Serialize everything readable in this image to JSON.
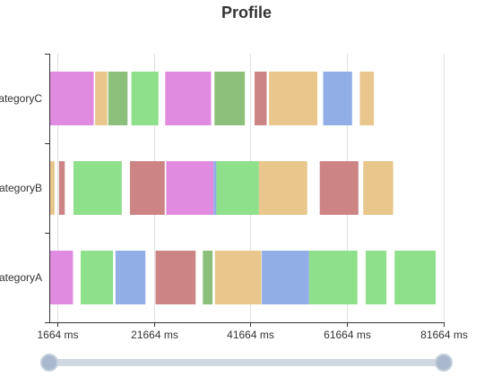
{
  "chart_data": {
    "type": "custom-profile",
    "title": "Profile",
    "x_unit": "ms",
    "x_min": 0,
    "x_max": 81664,
    "x_ticks": [
      1664,
      21664,
      41664,
      61664,
      81664
    ],
    "categories": [
      "categoryA",
      "categoryB",
      "categoryC"
    ],
    "colors": {
      "magenta": "#e08be0",
      "tan": "#e8c68c",
      "green": "#8ee08a",
      "darkgreen": "#8cc07a",
      "red": "#cc8484",
      "blue": "#92aee6"
    },
    "series": [
      {
        "category": "categoryA",
        "segments": [
          {
            "start": 0,
            "duration": 4900,
            "color": "magenta"
          },
          {
            "start": 6500,
            "duration": 6700,
            "color": "green"
          },
          {
            "start": 13700,
            "duration": 6200,
            "color": "blue"
          },
          {
            "start": 22000,
            "duration": 8300,
            "color": "red"
          },
          {
            "start": 31800,
            "duration": 2000,
            "color": "darkgreen"
          },
          {
            "start": 34300,
            "duration": 9600,
            "color": "tan"
          },
          {
            "start": 44000,
            "duration": 9800,
            "color": "blue"
          },
          {
            "start": 53800,
            "duration": 10000,
            "color": "green"
          },
          {
            "start": 65500,
            "duration": 4300,
            "color": "green"
          },
          {
            "start": 71500,
            "duration": 8500,
            "color": "green"
          }
        ]
      },
      {
        "category": "categoryB",
        "segments": [
          {
            "start": 0,
            "duration": 1100,
            "color": "tan"
          },
          {
            "start": 2000,
            "duration": 1200,
            "color": "red"
          },
          {
            "start": 5000,
            "duration": 10000,
            "color": "green"
          },
          {
            "start": 16700,
            "duration": 7200,
            "color": "red"
          },
          {
            "start": 24200,
            "duration": 9800,
            "color": "magenta"
          },
          {
            "start": 34000,
            "duration": 600,
            "color": "blue"
          },
          {
            "start": 34600,
            "duration": 8800,
            "color": "green"
          },
          {
            "start": 43400,
            "duration": 10000,
            "color": "tan"
          },
          {
            "start": 56000,
            "duration": 8000,
            "color": "red"
          },
          {
            "start": 65000,
            "duration": 6200,
            "color": "tan"
          }
        ]
      },
      {
        "category": "categoryC",
        "segments": [
          {
            "start": 0,
            "duration": 9200,
            "color": "magenta"
          },
          {
            "start": 9500,
            "duration": 2500,
            "color": "tan"
          },
          {
            "start": 12200,
            "duration": 4000,
            "color": "darkgreen"
          },
          {
            "start": 17000,
            "duration": 5600,
            "color": "green"
          },
          {
            "start": 24000,
            "duration": 9500,
            "color": "magenta"
          },
          {
            "start": 34200,
            "duration": 6300,
            "color": "darkgreen"
          },
          {
            "start": 42500,
            "duration": 2500,
            "color": "red"
          },
          {
            "start": 45500,
            "duration": 10000,
            "color": "tan"
          },
          {
            "start": 56700,
            "duration": 6000,
            "color": "blue"
          },
          {
            "start": 64300,
            "duration": 2900,
            "color": "tan"
          }
        ]
      }
    ],
    "slider": {
      "start_fraction": 0,
      "end_fraction": 1
    }
  }
}
